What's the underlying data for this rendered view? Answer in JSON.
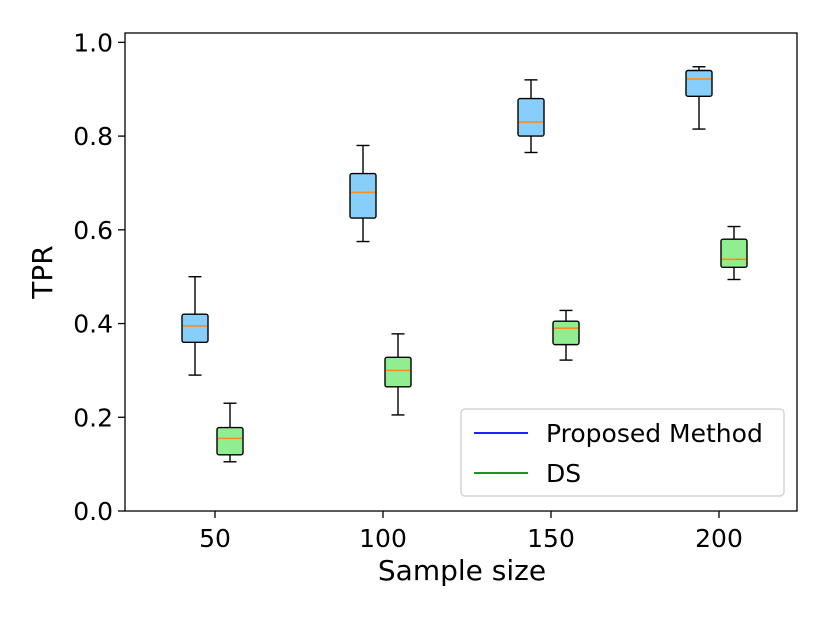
{
  "chart_data": {
    "type": "boxplot",
    "title": "",
    "xlabel": "Sample size",
    "ylabel": "TPR",
    "ylim": [
      0.0,
      1.02
    ],
    "yticks": [
      0.0,
      0.2,
      0.4,
      0.6,
      0.8,
      1.0
    ],
    "ytick_labels": [
      "0.0",
      "0.2",
      "0.4",
      "0.6",
      "0.8",
      "1.0"
    ],
    "categories": [
      "50",
      "100",
      "150",
      "200"
    ],
    "legend_position": "lower-right",
    "series": [
      {
        "name": "Proposed Method",
        "legend_color": "#0000ff",
        "box_color": "#87cefa",
        "boxes": [
          {
            "whisker_low": 0.29,
            "q1": 0.36,
            "median": 0.395,
            "q3": 0.42,
            "whisker_high": 0.5
          },
          {
            "whisker_low": 0.575,
            "q1": 0.625,
            "median": 0.68,
            "q3": 0.72,
            "whisker_high": 0.78
          },
          {
            "whisker_low": 0.765,
            "q1": 0.8,
            "median": 0.83,
            "q3": 0.88,
            "whisker_high": 0.92
          },
          {
            "whisker_low": 0.815,
            "q1": 0.885,
            "median": 0.922,
            "q3": 0.94,
            "whisker_high": 0.948
          }
        ]
      },
      {
        "name": "DS",
        "legend_color": "#008000",
        "box_color": "#90ee90",
        "boxes": [
          {
            "whisker_low": 0.105,
            "q1": 0.12,
            "median": 0.155,
            "q3": 0.178,
            "whisker_high": 0.23
          },
          {
            "whisker_low": 0.205,
            "q1": 0.265,
            "median": 0.3,
            "q3": 0.328,
            "whisker_high": 0.378
          },
          {
            "whisker_low": 0.322,
            "q1": 0.355,
            "median": 0.39,
            "q3": 0.405,
            "whisker_high": 0.428
          },
          {
            "whisker_low": 0.494,
            "q1": 0.52,
            "median": 0.537,
            "q3": 0.58,
            "whisker_high": 0.607
          }
        ]
      }
    ],
    "median_color": "#ff8c1a"
  }
}
